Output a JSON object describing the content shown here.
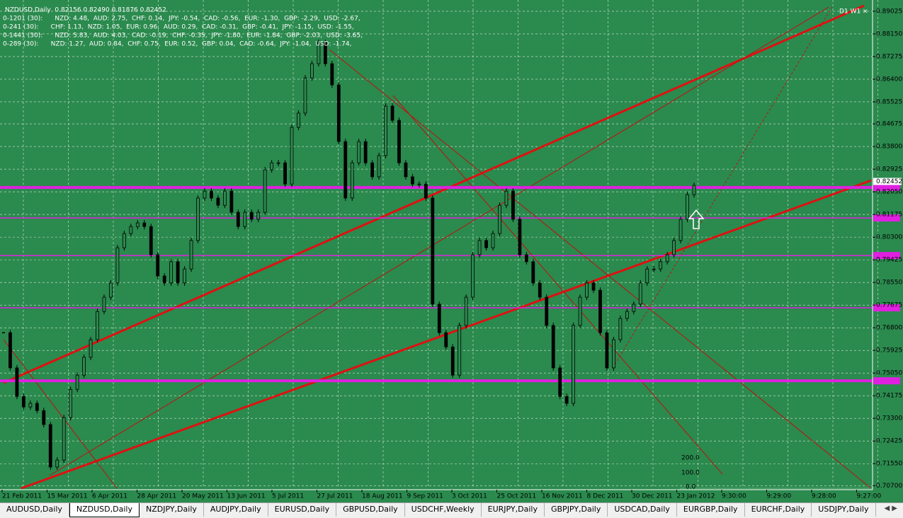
{
  "window": {
    "info_lines": [
      "NZDUSD,Daily  0.82156 0.82490 0.81876 0.82452",
      "0-1201 (30):      NZD: 4.48,  AUD: 2.75,  CHF: 0.14,  JPY: -0.54,  CAD: -0.56,  EUR: -1.30,  GBP: -2.29,  USD: -2.67,",
      "0-241 (30):      CHF: 1.13,  NZD: 1.05,  EUR: 0.96,  AUD: 0.29,  CAD: -0.31,  GBP: -0.41,  JPY: -1.15,  USD: -1.55,",
      "0-1441 (30):      NZD: 5.83,  AUD: 4.03,  CAD: -0.19,  CHF: -0.35,  JPY: -1.80,  EUR: -1.84,  GBP: -2.03,  USD: -3.65,",
      "0-289 (30):      NZD: 1.27,  AUD: 0.84,  CHF: 0.75,  EUR: 0.52,  GBP: 0.04,  CAD: -0.64,  JPY: -1.04,  USD: -1.74,"
    ],
    "timeframe_label": "D1 W1",
    "mini_axis": [
      "200.0",
      "100.0",
      "0.0"
    ],
    "tabs": [
      "AUDUSD,Daily",
      "NZDUSD,Daily",
      "NZDJPY,Daily",
      "AUDJPY,Daily",
      "EURUSD,Daily",
      "GBPUSD,Daily",
      "USDCHF,Weekly",
      "EURJPY,Daily",
      "GBPJPY,Daily",
      "USDCAD,Daily",
      "EURGBP,Daily",
      "EURCHF,Daily",
      "USDJPY,Daily"
    ],
    "active_tab": 1
  },
  "chart_data": {
    "type": "candlestick",
    "values": [
      0.7661,
      0.7525,
      0.7415,
      0.7374,
      0.7388,
      0.736,
      0.7306,
      0.7142,
      0.7169,
      0.7333,
      0.7442,
      0.7497,
      0.7566,
      0.7634,
      0.7743,
      0.7798,
      0.7853,
      0.7989,
      0.8044,
      0.8071,
      0.8085,
      0.8071,
      0.7962,
      0.788,
      0.7853,
      0.7935,
      0.7853,
      0.7907,
      0.8017,
      0.8181,
      0.8208,
      0.8181,
      0.8153,
      0.8208,
      0.8126,
      0.8071,
      0.8126,
      0.8099,
      0.8126,
      0.829,
      0.8317,
      0.8317,
      0.8235,
      0.8454,
      0.8509,
      0.8645,
      0.87,
      0.8782,
      0.87,
      0.8618,
      0.8399,
      0.8181,
      0.8317,
      0.8399,
      0.8317,
      0.8263,
      0.8345,
      0.8536,
      0.8481,
      0.8317,
      0.8263,
      0.8235,
      0.8235,
      0.8181,
      0.7771,
      0.7661,
      0.7606,
      0.7497,
      0.7689,
      0.7798,
      0.7962,
      0.8017,
      0.7989,
      0.8044,
      0.8153,
      0.8208,
      0.8099,
      0.7962,
      0.7935,
      0.7853,
      0.7798,
      0.7689,
      0.7525,
      0.7415,
      0.7388,
      0.7689,
      0.7798,
      0.7853,
      0.7825,
      0.7661,
      0.7525,
      0.7634,
      0.7716,
      0.7743,
      0.7771,
      0.7853,
      0.7907,
      0.7907,
      0.7935,
      0.7962,
      0.8017,
      0.8099,
      0.8194,
      0.823
    ],
    "ylim": [
      0.706,
      0.8946
    ],
    "yticks": [
      0.89025,
      {
        "value": 0.8815,
        "label": "0.88150"
      },
      0.87275,
      {
        "value": 0.864,
        "label": "0.86400"
      },
      0.85525,
      0.84675,
      {
        "value": 0.838,
        "label": "0.83800"
      },
      0.82925,
      {
        "value": 0.8205,
        "label": "0.82050"
      },
      0.81175,
      {
        "value": 0.803,
        "label": "0.80300"
      },
      0.79425,
      {
        "value": 0.7855,
        "label": "0.78550"
      },
      0.77675,
      {
        "value": 0.768,
        "label": "0.76800"
      },
      0.75925,
      {
        "value": 0.7505,
        "label": "0.75050"
      },
      0.74175,
      {
        "value": 0.733,
        "label": "0.73300"
      },
      0.72425,
      {
        "value": 0.7155,
        "label": "0.71550"
      },
      {
        "value": 0.707,
        "label": "0.70700"
      }
    ],
    "x_labels": [
      "21 Feb 2011",
      "15 Mar 2011",
      "6 Apr 2011",
      "28 Apr 2011",
      "20 May 2011",
      "13 Jun 2011",
      "5 Jul 2011",
      "27 Jul 2011",
      "18 Aug 2011",
      "9 Sep 2011",
      "3 Oct 2011",
      "25 Oct 2011",
      "16 Nov 2011",
      "8 Dec 2011",
      "30 Dec 2011",
      "23 Jan 2012",
      "9:30:00",
      "9:29:00",
      "9:28:00",
      "9:27:00"
    ],
    "levels": [
      0.8222,
      0.8104,
      0.7959,
      0.7757,
      0.7475
    ],
    "major_levels": [
      0.8222,
      0.7475
    ],
    "last_price": 0.82452,
    "grid": true,
    "background": "#2b8a4e",
    "level_color": "#e020e0"
  }
}
